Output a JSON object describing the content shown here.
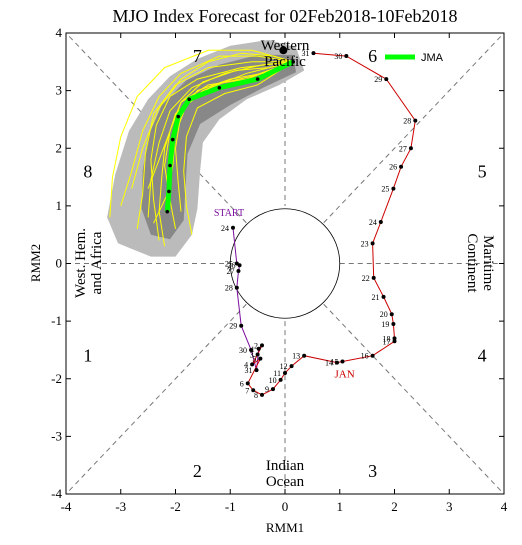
{
  "chart_data": {
    "type": "line",
    "title": "MJO Index Forecast for 02Feb2018-10Feb2018",
    "xlabel": "RMM1",
    "ylabel": "RMM2",
    "xlim": [
      -4,
      4
    ],
    "ylim": [
      -4,
      4
    ],
    "xticks": [
      "-4",
      "-3",
      "-2",
      "-1",
      "0",
      "1",
      "2",
      "3",
      "4"
    ],
    "yticks": [
      "-4",
      "-3",
      "-2",
      "-1",
      "0",
      "1",
      "2",
      "3",
      "4"
    ],
    "phase_numbers": [
      {
        "label": "1",
        "x": -3.6,
        "y": -1.6
      },
      {
        "label": "2",
        "x": -1.6,
        "y": -3.6
      },
      {
        "label": "3",
        "x": 1.6,
        "y": -3.6
      },
      {
        "label": "4",
        "x": 3.6,
        "y": -1.6
      },
      {
        "label": "5",
        "x": 3.6,
        "y": 1.6
      },
      {
        "label": "6",
        "x": 1.6,
        "y": 3.6
      },
      {
        "label": "7",
        "x": -1.6,
        "y": 3.6
      },
      {
        "label": "8",
        "x": -3.6,
        "y": 1.6
      }
    ],
    "regions": {
      "top": [
        "Western",
        "Pacific"
      ],
      "bottom": [
        "Indian",
        "Ocean"
      ],
      "left": [
        "West. Hem.",
        "and Africa"
      ],
      "right": [
        "Maritime",
        "Continent"
      ]
    },
    "legend": {
      "label": "JMA",
      "color": "#00ff00",
      "position": "top-right"
    },
    "annotations": {
      "start": "START",
      "month": "JAN"
    },
    "colors": {
      "dec": "#7b0f9e",
      "jan": "#cc0000",
      "members": "#ffff00",
      "spread_outer": "#bbbbbb",
      "spread_inner": "#888888",
      "ensemble_mean": "#00ff00"
    },
    "observed": {
      "dec": [
        {
          "day": "24",
          "x": -0.95,
          "y": 0.62
        },
        {
          "day": "25",
          "x": -0.88,
          "y": 0.0
        },
        {
          "day": "26",
          "x": -0.83,
          "y": -0.03
        },
        {
          "day": "27",
          "x": -0.85,
          "y": -0.13
        },
        {
          "day": "28",
          "x": -0.88,
          "y": -0.42
        },
        {
          "day": "29",
          "x": -0.8,
          "y": -1.08
        },
        {
          "day": "30",
          "x": -0.62,
          "y": -1.5
        },
        {
          "day": "31",
          "x": -0.52,
          "y": -1.85
        }
      ],
      "jan": [
        {
          "day": "1",
          "x": -0.48,
          "y": -1.48
        },
        {
          "day": "2",
          "x": -0.42,
          "y": -1.42
        },
        {
          "day": "3",
          "x": -0.5,
          "y": -1.58
        },
        {
          "day": "4",
          "x": -0.6,
          "y": -1.75
        },
        {
          "day": "5",
          "x": -0.45,
          "y": -1.65
        },
        {
          "day": "6",
          "x": -0.68,
          "y": -2.08
        },
        {
          "day": "7",
          "x": -0.58,
          "y": -2.2
        },
        {
          "day": "8",
          "x": -0.42,
          "y": -2.28
        },
        {
          "day": "9",
          "x": -0.22,
          "y": -2.18
        },
        {
          "day": "10",
          "x": -0.08,
          "y": -2.02
        },
        {
          "day": "11",
          "x": 0.0,
          "y": -1.9
        },
        {
          "day": "12",
          "x": 0.12,
          "y": -1.78
        },
        {
          "day": "13",
          "x": 0.35,
          "y": -1.6
        },
        {
          "day": "14",
          "x": 0.95,
          "y": -1.72
        },
        {
          "day": "15",
          "x": 1.05,
          "y": -1.7
        },
        {
          "day": "16",
          "x": 1.6,
          "y": -1.6
        },
        {
          "day": "17",
          "x": 2.0,
          "y": -1.35
        },
        {
          "day": "18",
          "x": 2.0,
          "y": -1.3
        },
        {
          "day": "19",
          "x": 1.98,
          "y": -1.05
        },
        {
          "day": "20",
          "x": 1.95,
          "y": -0.88
        },
        {
          "day": "21",
          "x": 1.8,
          "y": -0.58
        },
        {
          "day": "22",
          "x": 1.62,
          "y": -0.25
        },
        {
          "day": "23",
          "x": 1.6,
          "y": 0.35
        },
        {
          "day": "24",
          "x": 1.75,
          "y": 0.72
        },
        {
          "day": "25",
          "x": 1.98,
          "y": 1.3
        },
        {
          "day": "26",
          "x": 2.12,
          "y": 1.68
        },
        {
          "day": "27",
          "x": 2.3,
          "y": 2.0
        },
        {
          "day": "28",
          "x": 2.38,
          "y": 2.48
        },
        {
          "day": "29",
          "x": 1.85,
          "y": 3.2
        },
        {
          "day": "30",
          "x": 1.12,
          "y": 3.6
        },
        {
          "day": "31",
          "x": 0.52,
          "y": 3.65
        }
      ]
    },
    "forecast_mean": [
      {
        "x": 0.15,
        "y": 3.5
      },
      {
        "x": -0.5,
        "y": 3.2
      },
      {
        "x": -1.2,
        "y": 3.05
      },
      {
        "x": -1.75,
        "y": 2.85
      },
      {
        "x": -1.95,
        "y": 2.55
      },
      {
        "x": -2.05,
        "y": 2.15
      },
      {
        "x": -2.1,
        "y": 1.7
      },
      {
        "x": -2.12,
        "y": 1.25
      },
      {
        "x": -2.15,
        "y": 0.9
      }
    ],
    "spread_outer": [
      {
        "x": 0.2,
        "y": 3.75
      },
      {
        "x": -0.3,
        "y": 3.88
      },
      {
        "x": -1.0,
        "y": 3.78
      },
      {
        "x": -1.6,
        "y": 3.55
      },
      {
        "x": -2.1,
        "y": 3.25
      },
      {
        "x": -2.5,
        "y": 2.85
      },
      {
        "x": -2.85,
        "y": 2.3
      },
      {
        "x": -3.1,
        "y": 1.55
      },
      {
        "x": -3.25,
        "y": 0.8
      },
      {
        "x": -3.05,
        "y": 0.35
      },
      {
        "x": -2.45,
        "y": 0.12
      },
      {
        "x": -2.0,
        "y": 0.12
      },
      {
        "x": -1.7,
        "y": 0.5
      },
      {
        "x": -1.6,
        "y": 0.95
      },
      {
        "x": -1.55,
        "y": 1.6
      },
      {
        "x": -1.5,
        "y": 2.1
      },
      {
        "x": -1.2,
        "y": 2.5
      },
      {
        "x": -0.7,
        "y": 2.85
      },
      {
        "x": -0.1,
        "y": 3.1
      },
      {
        "x": 0.35,
        "y": 3.35
      }
    ],
    "spread_inner": [
      {
        "x": 0.15,
        "y": 3.62
      },
      {
        "x": -0.5,
        "y": 3.62
      },
      {
        "x": -1.2,
        "y": 3.45
      },
      {
        "x": -1.8,
        "y": 3.18
      },
      {
        "x": -2.25,
        "y": 2.75
      },
      {
        "x": -2.5,
        "y": 2.2
      },
      {
        "x": -2.6,
        "y": 1.6
      },
      {
        "x": -2.62,
        "y": 0.95
      },
      {
        "x": -2.45,
        "y": 0.5
      },
      {
        "x": -2.1,
        "y": 0.42
      },
      {
        "x": -1.85,
        "y": 0.75
      },
      {
        "x": -1.82,
        "y": 1.3
      },
      {
        "x": -1.78,
        "y": 1.9
      },
      {
        "x": -1.55,
        "y": 2.42
      },
      {
        "x": -1.0,
        "y": 2.75
      },
      {
        "x": -0.4,
        "y": 3.05
      },
      {
        "x": 0.2,
        "y": 3.32
      }
    ],
    "members": [
      [
        [
          0.15,
          3.5
        ],
        [
          -0.6,
          3.5
        ],
        [
          -1.4,
          3.4
        ],
        [
          -2.0,
          3.1
        ],
        [
          -2.4,
          2.6
        ],
        [
          -2.55,
          1.9
        ],
        [
          -2.6,
          1.2
        ],
        [
          -2.7,
          0.6
        ]
      ],
      [
        [
          0.15,
          3.5
        ],
        [
          -0.4,
          3.3
        ],
        [
          -1.0,
          3.2
        ],
        [
          -1.6,
          3.0
        ],
        [
          -1.9,
          2.6
        ],
        [
          -2.0,
          2.0
        ],
        [
          -1.95,
          1.4
        ],
        [
          -1.9,
          0.9
        ]
      ],
      [
        [
          0.15,
          3.5
        ],
        [
          -0.5,
          3.6
        ],
        [
          -1.2,
          3.6
        ],
        [
          -1.9,
          3.3
        ],
        [
          -2.3,
          2.9
        ],
        [
          -2.6,
          2.3
        ],
        [
          -2.8,
          1.6
        ],
        [
          -3.0,
          1.0
        ]
      ],
      [
        [
          0.15,
          3.5
        ],
        [
          -0.7,
          3.2
        ],
        [
          -1.4,
          3.1
        ],
        [
          -1.9,
          2.8
        ],
        [
          -2.1,
          2.3
        ],
        [
          -2.2,
          1.7
        ],
        [
          -2.1,
          1.1
        ],
        [
          -2.0,
          0.6
        ]
      ],
      [
        [
          0.15,
          3.5
        ],
        [
          -0.3,
          3.4
        ],
        [
          -0.9,
          3.35
        ],
        [
          -1.5,
          3.15
        ],
        [
          -1.9,
          2.8
        ],
        [
          -2.1,
          2.3
        ],
        [
          -2.3,
          1.8
        ],
        [
          -2.5,
          1.3
        ]
      ],
      [
        [
          0.15,
          3.5
        ],
        [
          -0.8,
          3.4
        ],
        [
          -1.6,
          3.2
        ],
        [
          -2.1,
          2.9
        ],
        [
          -2.35,
          2.4
        ],
        [
          -2.45,
          1.8
        ],
        [
          -2.4,
          1.1
        ],
        [
          -2.3,
          0.4
        ]
      ],
      [
        [
          0.15,
          3.5
        ],
        [
          -0.5,
          3.1
        ],
        [
          -1.1,
          2.95
        ],
        [
          -1.6,
          2.7
        ],
        [
          -1.8,
          2.2
        ],
        [
          -1.85,
          1.6
        ],
        [
          -1.8,
          1.0
        ],
        [
          -1.7,
          0.5
        ]
      ],
      [
        [
          0.15,
          3.5
        ],
        [
          -0.6,
          3.7
        ],
        [
          -1.4,
          3.7
        ],
        [
          -2.2,
          3.4
        ],
        [
          -2.7,
          2.9
        ],
        [
          -3.0,
          2.2
        ],
        [
          -3.15,
          1.5
        ],
        [
          -3.2,
          0.8
        ]
      ],
      [
        [
          0.15,
          3.5
        ],
        [
          -0.4,
          3.45
        ],
        [
          -1.1,
          3.3
        ],
        [
          -1.7,
          3.05
        ],
        [
          -2.1,
          2.65
        ],
        [
          -2.3,
          2.1
        ],
        [
          -2.45,
          1.45
        ],
        [
          -2.5,
          0.8
        ]
      ],
      [
        [
          0.15,
          3.5
        ],
        [
          -0.7,
          3.3
        ],
        [
          -1.5,
          3.0
        ],
        [
          -2.0,
          2.6
        ],
        [
          -2.2,
          2.0
        ],
        [
          -2.25,
          1.5
        ],
        [
          -2.3,
          0.9
        ],
        [
          -2.2,
          0.3
        ]
      ],
      [
        [
          0.15,
          3.5
        ],
        [
          -0.2,
          3.6
        ],
        [
          -0.8,
          3.65
        ],
        [
          -1.4,
          3.5
        ],
        [
          -1.9,
          3.2
        ],
        [
          -2.3,
          2.7
        ],
        [
          -2.6,
          2.0
        ],
        [
          -2.8,
          1.3
        ]
      ],
      [
        [
          0.15,
          3.5
        ],
        [
          -0.6,
          3.25
        ],
        [
          -1.3,
          3.1
        ],
        [
          -1.8,
          2.75
        ],
        [
          -2.0,
          2.25
        ],
        [
          -2.05,
          1.7
        ],
        [
          -2.15,
          1.2
        ],
        [
          -2.4,
          0.7
        ]
      ]
    ]
  }
}
